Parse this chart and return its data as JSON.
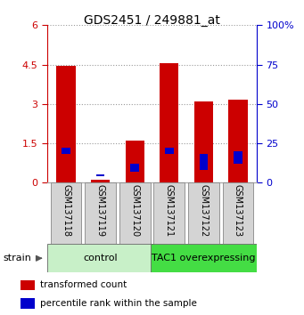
{
  "title": "GDS2451 / 249881_at",
  "samples": [
    "GSM137118",
    "GSM137119",
    "GSM137120",
    "GSM137121",
    "GSM137122",
    "GSM137123"
  ],
  "red_values": [
    4.45,
    0.12,
    1.62,
    4.55,
    3.1,
    3.18
  ],
  "blue_top_pct": [
    22,
    5,
    12,
    22,
    18,
    20
  ],
  "blue_bot_pct": [
    18,
    4,
    7,
    18,
    8,
    12
  ],
  "groups": [
    {
      "label": "control",
      "start": 0,
      "end": 3,
      "color": "#c8f0c8",
      "text_color": "#000000"
    },
    {
      "label": "TAC1 overexpressing",
      "start": 3,
      "end": 6,
      "color": "#44dd44",
      "text_color": "#000000"
    }
  ],
  "ylim_left": [
    0,
    6
  ],
  "ylim_right": [
    0,
    100
  ],
  "yticks_left": [
    0,
    1.5,
    3.0,
    4.5,
    6.0
  ],
  "yticks_right": [
    0,
    25,
    50,
    75,
    100
  ],
  "ytick_labels_left": [
    "0",
    "1.5",
    "3",
    "4.5",
    "6"
  ],
  "ytick_labels_right": [
    "0",
    "25",
    "50",
    "75",
    "100%"
  ],
  "left_tick_color": "#cc0000",
  "right_tick_color": "#0000cc",
  "bar_width": 0.55,
  "red_color": "#cc0000",
  "blue_color": "#0000cc",
  "grid_color": "#999999",
  "legend_red": "transformed count",
  "legend_blue": "percentile rank within the sample",
  "strain_label": "strain"
}
